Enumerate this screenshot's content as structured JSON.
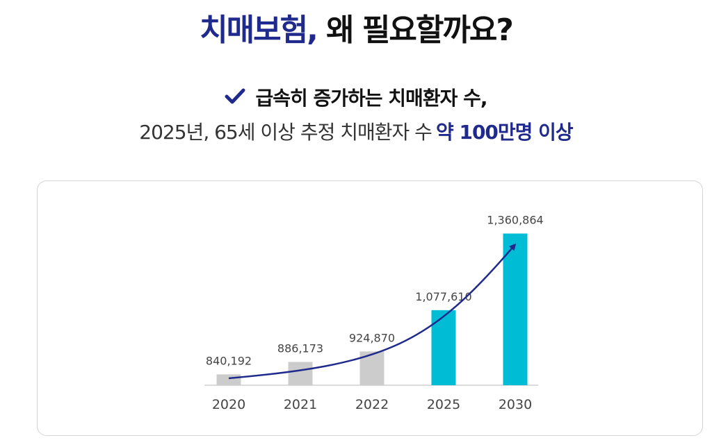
{
  "heading": {
    "highlight": "치매보험,",
    "rest": " 왜 필요할까요?"
  },
  "subheading": {
    "check_icon": "checkmark-icon",
    "line1": "급속히 증가하는 치매환자 수,",
    "line2_prefix": "2025년, 65세 이상 추정 치매환자 수",
    "line2_highlight": "약 100만명 이상"
  },
  "colors": {
    "accent": "#1f2a8c",
    "bar_past": "#cccccc",
    "bar_projected": "#00bcd4"
  },
  "chart_data": {
    "type": "bar",
    "title": "",
    "xlabel": "",
    "ylabel": "",
    "categories": [
      "2020",
      "2021",
      "2022",
      "2025",
      "2030"
    ],
    "values": [
      840192,
      886173,
      924870,
      1077610,
      1360864
    ],
    "value_labels": [
      "840,192",
      "886,173",
      "924,870",
      "1,077,610",
      "1,360,864"
    ],
    "projected": [
      false,
      false,
      false,
      true,
      true
    ],
    "ylim": [
      800000,
      1380000
    ],
    "grid": false,
    "trend_arrow": true
  }
}
